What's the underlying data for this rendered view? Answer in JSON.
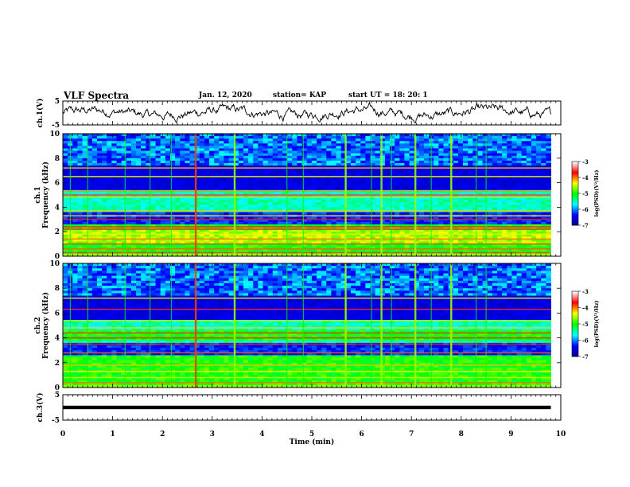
{
  "header": {
    "title": "VLF Spectra",
    "date": "Jan. 12, 2020",
    "station": "station= KAP",
    "start": "start  UT =   18: 20: 1"
  },
  "chart_data": [
    {
      "type": "line",
      "name": "ch1-waveform",
      "ylabel": "ch.1(V)",
      "ylim": [
        -5,
        5
      ],
      "yticks": [
        "5",
        "-5"
      ],
      "xlim": [
        0,
        10
      ],
      "description_series": "noisy voltage trace around ~0 V"
    },
    {
      "type": "heatmap",
      "name": "ch1-spectrogram",
      "ylabel_line1": "ch.1",
      "ylabel_line2": "Frequency (kHz)",
      "ylim": [
        0,
        10
      ],
      "yticks": [
        "0",
        "2",
        "4",
        "6",
        "8",
        "10"
      ],
      "xlim": [
        0,
        9.8
      ],
      "colorbar": {
        "label": "log(PSD)(V²/Hz)",
        "range": [
          -7,
          -3
        ],
        "ticks": [
          "-3",
          "-4",
          "-5",
          "-6",
          "-7"
        ]
      }
    },
    {
      "type": "heatmap",
      "name": "ch2-spectrogram",
      "ylabel_line1": "ch.2",
      "ylabel_line2": "Frequency (kHz)",
      "ylim": [
        0,
        10
      ],
      "yticks": [
        "0",
        "2",
        "4",
        "6",
        "8",
        "10"
      ],
      "xlim": [
        0,
        9.8
      ],
      "colorbar": {
        "label": "log(PSD)(V²/Hz)",
        "range": [
          -7,
          -3
        ],
        "ticks": [
          "-3",
          "-4",
          "-5",
          "-6",
          "-7"
        ]
      }
    },
    {
      "type": "line",
      "name": "ch3-waveform",
      "ylabel": "ch.3(V)",
      "ylim": [
        -5,
        5
      ],
      "yticks": [
        "5",
        "-5"
      ],
      "xlim": [
        0,
        10
      ],
      "description_series": "flat trace at about 0 V"
    }
  ],
  "xaxis": {
    "label": "Time (min)",
    "ticks": [
      "0",
      "1",
      "2",
      "3",
      "4",
      "5",
      "6",
      "7",
      "8",
      "9",
      "10"
    ]
  },
  "colors": {
    "background": "#ffffff",
    "axis": "#000000",
    "colormap": [
      "#00008f",
      "#0000ff",
      "#00ffff",
      "#00ff00",
      "#ffff00",
      "#ff0000",
      "#ffffff"
    ]
  }
}
